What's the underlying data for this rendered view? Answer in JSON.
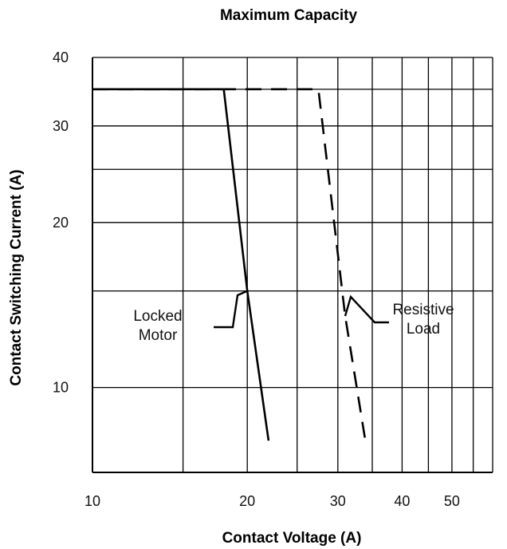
{
  "chart_data": {
    "type": "line",
    "title": "Maximum Capacity",
    "xlabel": "Contact Voltage (A)",
    "ylabel": "Contact Switching Current (A)",
    "xscale": "log",
    "yscale": "log",
    "xlim": [
      10,
      60
    ],
    "ylim": [
      7,
      40
    ],
    "grid": true,
    "x_ticks": [
      {
        "value": 10,
        "label": "10"
      },
      {
        "value": 20,
        "label": "20"
      },
      {
        "value": 30,
        "label": "30"
      },
      {
        "value": 40,
        "label": "40"
      },
      {
        "value": 50,
        "label": "50"
      }
    ],
    "y_ticks": [
      {
        "value": 10,
        "label": "10"
      },
      {
        "value": 20,
        "label": "20"
      },
      {
        "value": 30,
        "label": "30"
      },
      {
        "value": 40,
        "label": "40"
      }
    ],
    "x_grid": [
      10,
      15,
      20,
      25,
      30,
      35,
      40,
      45,
      50,
      55,
      60
    ],
    "y_grid": [
      10,
      15,
      20,
      25,
      30,
      35,
      40
    ],
    "series": [
      {
        "id": "locked-motor",
        "style": "solid",
        "color": "#000000",
        "points": [
          [
            10,
            35
          ],
          [
            18,
            35
          ],
          [
            20,
            15
          ],
          [
            22,
            8
          ]
        ]
      },
      {
        "id": "resistive-load",
        "style": "dashed",
        "color": "#000000",
        "points": [
          [
            10,
            35
          ],
          [
            27.5,
            35
          ],
          [
            31,
            13.5
          ],
          [
            34,
            7.9
          ]
        ]
      }
    ],
    "annotations": [
      {
        "id": "locked-motor",
        "lines": [
          "Locked",
          "Motor"
        ],
        "pointer_to": [
          20,
          15
        ]
      },
      {
        "id": "resistive-load",
        "lines": [
          "Resistive",
          "Load"
        ],
        "pointer_to": [
          31,
          13.5
        ]
      }
    ]
  }
}
